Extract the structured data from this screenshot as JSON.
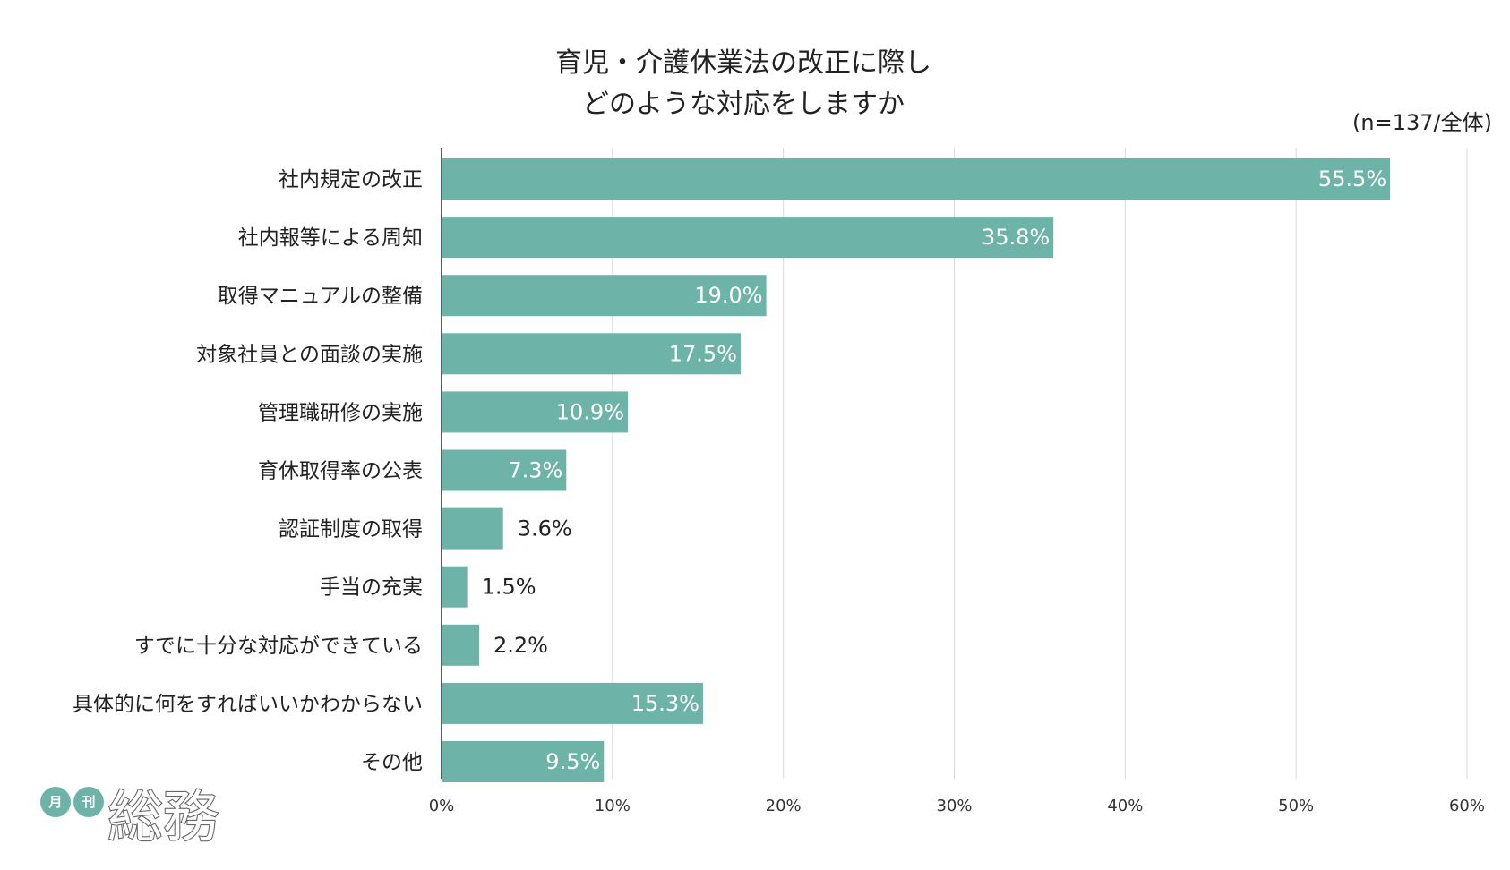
{
  "chart_data": {
    "type": "bar",
    "orientation": "horizontal",
    "title_lines": [
      "育児・介護休業法の改正に際し",
      "どのような対応をしますか"
    ],
    "note": "(n=137/全体)",
    "categories": [
      "社内規定の改正",
      "社内報等による周知",
      "取得マニュアルの整備",
      "対象社員との面談の実施",
      "管理職研修の実施",
      "育休取得率の公表",
      "認証制度の取得",
      "手当の充実",
      "すでに十分な対応ができている",
      "具体的に何をすればいいかわからない",
      "その他"
    ],
    "values": [
      55.5,
      35.8,
      19.0,
      17.5,
      10.9,
      7.3,
      3.6,
      1.5,
      2.2,
      15.3,
      9.5
    ],
    "value_labels": [
      "55.5%",
      "35.8%",
      "19.0%",
      "17.5%",
      "10.9%",
      "7.3%",
      "3.6%",
      "1.5%",
      "2.2%",
      "15.3%",
      "9.5%"
    ],
    "xlim": [
      0,
      60
    ],
    "xticks": [
      0,
      10,
      20,
      30,
      40,
      50,
      60
    ],
    "xtick_labels": [
      "0%",
      "10%",
      "20%",
      "30%",
      "40%",
      "50%",
      "60%"
    ],
    "grid": true,
    "bar_color": "#6db3a8"
  },
  "logo": {
    "small_left": "月",
    "small_right": "刊",
    "main": "総務",
    "badge_color": "#6db3a8"
  }
}
